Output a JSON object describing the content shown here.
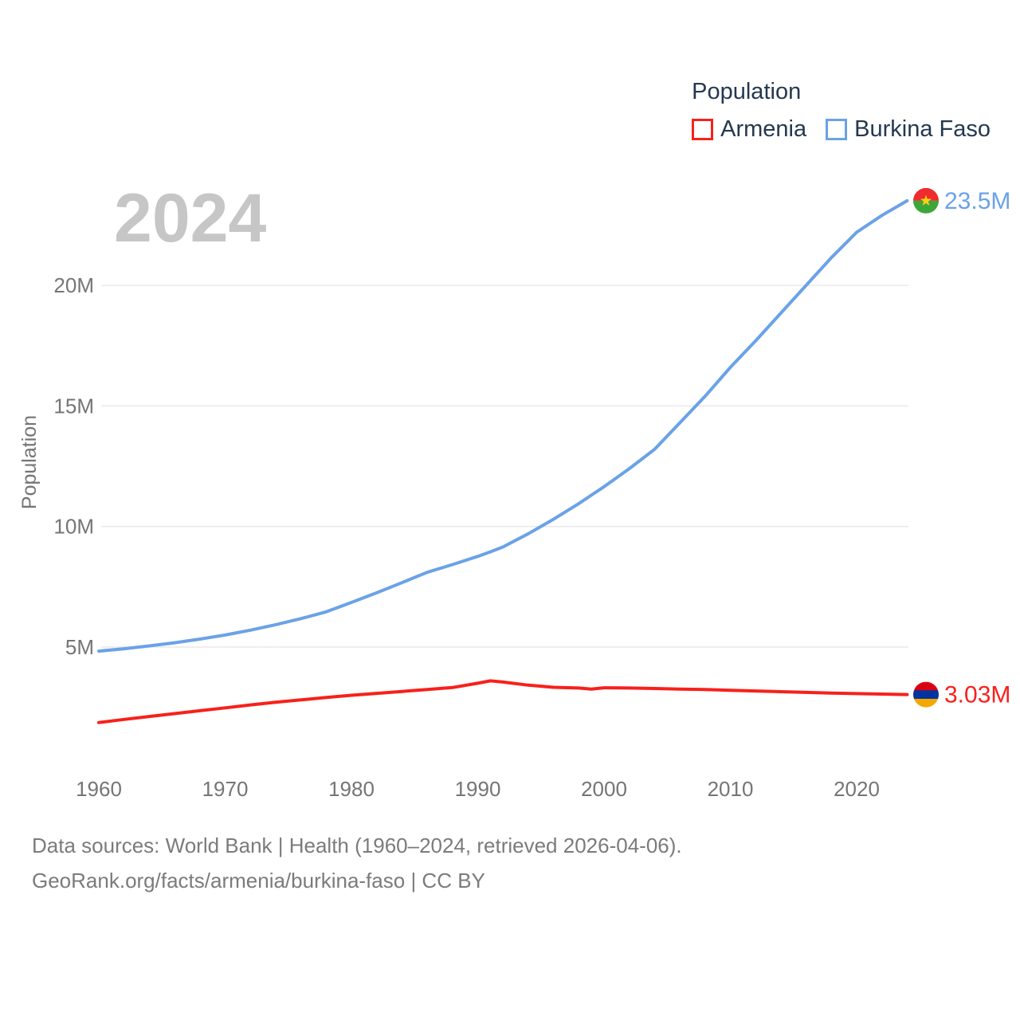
{
  "watermark": "2024",
  "legend": {
    "title": "Population",
    "items": [
      {
        "label": "Armenia",
        "color": "#f8201b"
      },
      {
        "label": "Burkina Faso",
        "color": "#6aa2e8"
      }
    ]
  },
  "colors": {
    "grid": "#e9e9e9",
    "axis_text": "#757575",
    "watermark": "#c6c6c6",
    "legend_text": "#24384f",
    "footer_text": "#7b7b7b"
  },
  "footer": {
    "line1": "Data sources: World Bank | Health (1960–2024, retrieved 2026-04-06).",
    "line2": "GeoRank.org/facts/armenia/burkina-faso | CC BY"
  },
  "chart_data": {
    "type": "line",
    "title": "Population",
    "watermark_year": "2024",
    "xlabel": "",
    "ylabel": "Population",
    "grid": true,
    "legend_position": "top-right",
    "xlim": [
      1960,
      2024
    ],
    "ylim": [
      0,
      24
    ],
    "x_ticks": [
      1960,
      1970,
      1980,
      1990,
      2000,
      2010,
      2020
    ],
    "y_ticks": [
      {
        "value": 5,
        "label": "5M"
      },
      {
        "value": 10,
        "label": "10M"
      },
      {
        "value": 15,
        "label": "15M"
      },
      {
        "value": 20,
        "label": "20M"
      }
    ],
    "x": [
      1960,
      1962,
      1964,
      1966,
      1968,
      1970,
      1972,
      1974,
      1976,
      1978,
      1980,
      1982,
      1984,
      1986,
      1988,
      1990,
      1991,
      1992,
      1994,
      1996,
      1998,
      1999,
      2000,
      2002,
      2004,
      2006,
      2008,
      2010,
      2012,
      2014,
      2016,
      2018,
      2020,
      2022,
      2024
    ],
    "series": [
      {
        "name": "Burkina Faso",
        "color": "#6aa2e8",
        "end_label": "23.5M",
        "values": [
          4.83,
          4.93,
          5.05,
          5.18,
          5.33,
          5.5,
          5.7,
          5.93,
          6.18,
          6.46,
          6.85,
          7.25,
          7.67,
          8.1,
          8.42,
          8.76,
          8.95,
          9.15,
          9.7,
          10.3,
          10.95,
          11.3,
          11.65,
          12.4,
          13.2,
          14.3,
          15.4,
          16.6,
          17.7,
          18.85,
          20.0,
          21.15,
          22.2,
          22.9,
          23.51
        ],
        "flag": {
          "type": "burkina-faso",
          "top": "#ef2b2d",
          "bottom": "#3da639",
          "star": "#fcd116"
        }
      },
      {
        "name": "Armenia",
        "color": "#f8201b",
        "end_label": "3.03M",
        "values": [
          1.87,
          2.0,
          2.12,
          2.24,
          2.36,
          2.48,
          2.6,
          2.71,
          2.81,
          2.91,
          3.0,
          3.08,
          3.16,
          3.24,
          3.32,
          3.5,
          3.6,
          3.55,
          3.42,
          3.33,
          3.3,
          3.26,
          3.31,
          3.3,
          3.28,
          3.26,
          3.24,
          3.21,
          3.18,
          3.15,
          3.12,
          3.09,
          3.07,
          3.05,
          3.03
        ],
        "flag": {
          "type": "armenia",
          "stripes": [
            "#d90012",
            "#0033a0",
            "#f2a800"
          ]
        }
      }
    ]
  }
}
